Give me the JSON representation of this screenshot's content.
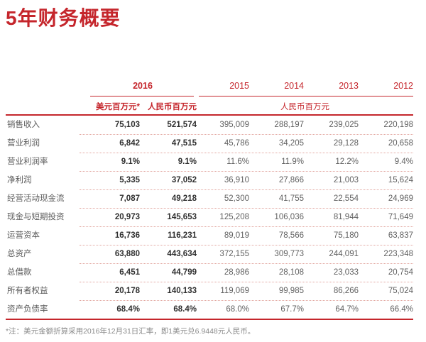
{
  "page": {
    "title": "5年财务概要",
    "footnote": "*注：美元金额折算采用2016年12月31日汇率，即1美元兑6.9448元人民币。"
  },
  "colors": {
    "accent_red": "#c5262c",
    "dotted_separator": "#e2a69f",
    "label_gray": "#5a5a5a",
    "value_gray": "#606060",
    "value_2016_dark": "#2f2f2f",
    "footnote_gray": "#8a8a8a"
  },
  "table": {
    "header": {
      "year_2016": "2016",
      "years": [
        "2015",
        "2014",
        "2013",
        "2012"
      ],
      "unit_usd_2016": "美元百万元*",
      "unit_rmb_2016": "人民币百万元",
      "unit_rmb_span": "人民币百万元"
    },
    "column_keys": [
      "2016-usd",
      "2016-rmb",
      "2015",
      "2014",
      "2013",
      "2012"
    ],
    "rows": [
      {
        "label": "销售收入",
        "values": [
          "75,103",
          "521,574",
          "395,009",
          "288,197",
          "239,025",
          "220,198"
        ]
      },
      {
        "label": "营业利润",
        "values": [
          "6,842",
          "47,515",
          "45,786",
          "34,205",
          "29,128",
          "20,658"
        ]
      },
      {
        "label": "营业利润率",
        "values": [
          "9.1%",
          "9.1%",
          "11.6%",
          "11.9%",
          "12.2%",
          "9.4%"
        ]
      },
      {
        "label": "净利润",
        "values": [
          "5,335",
          "37,052",
          "36,910",
          "27,866",
          "21,003",
          "15,624"
        ]
      },
      {
        "label": "经营活动现金流",
        "values": [
          "7,087",
          "49,218",
          "52,300",
          "41,755",
          "22,554",
          "24,969"
        ]
      },
      {
        "label": "现金与短期投资",
        "values": [
          "20,973",
          "145,653",
          "125,208",
          "106,036",
          "81,944",
          "71,649"
        ]
      },
      {
        "label": "运营资本",
        "values": [
          "16,736",
          "116,231",
          "89,019",
          "78,566",
          "75,180",
          "63,837"
        ]
      },
      {
        "label": "总资产",
        "values": [
          "63,880",
          "443,634",
          "372,155",
          "309,773",
          "244,091",
          "223,348"
        ]
      },
      {
        "label": "总借款",
        "values": [
          "6,451",
          "44,799",
          "28,986",
          "28,108",
          "23,033",
          "20,754"
        ]
      },
      {
        "label": "所有者权益",
        "values": [
          "20,178",
          "140,133",
          "119,069",
          "99,985",
          "86,266",
          "75,024"
        ]
      },
      {
        "label": "资产负债率",
        "values": [
          "68.4%",
          "68.4%",
          "68.0%",
          "67.7%",
          "64.7%",
          "66.4%"
        ]
      }
    ]
  }
}
